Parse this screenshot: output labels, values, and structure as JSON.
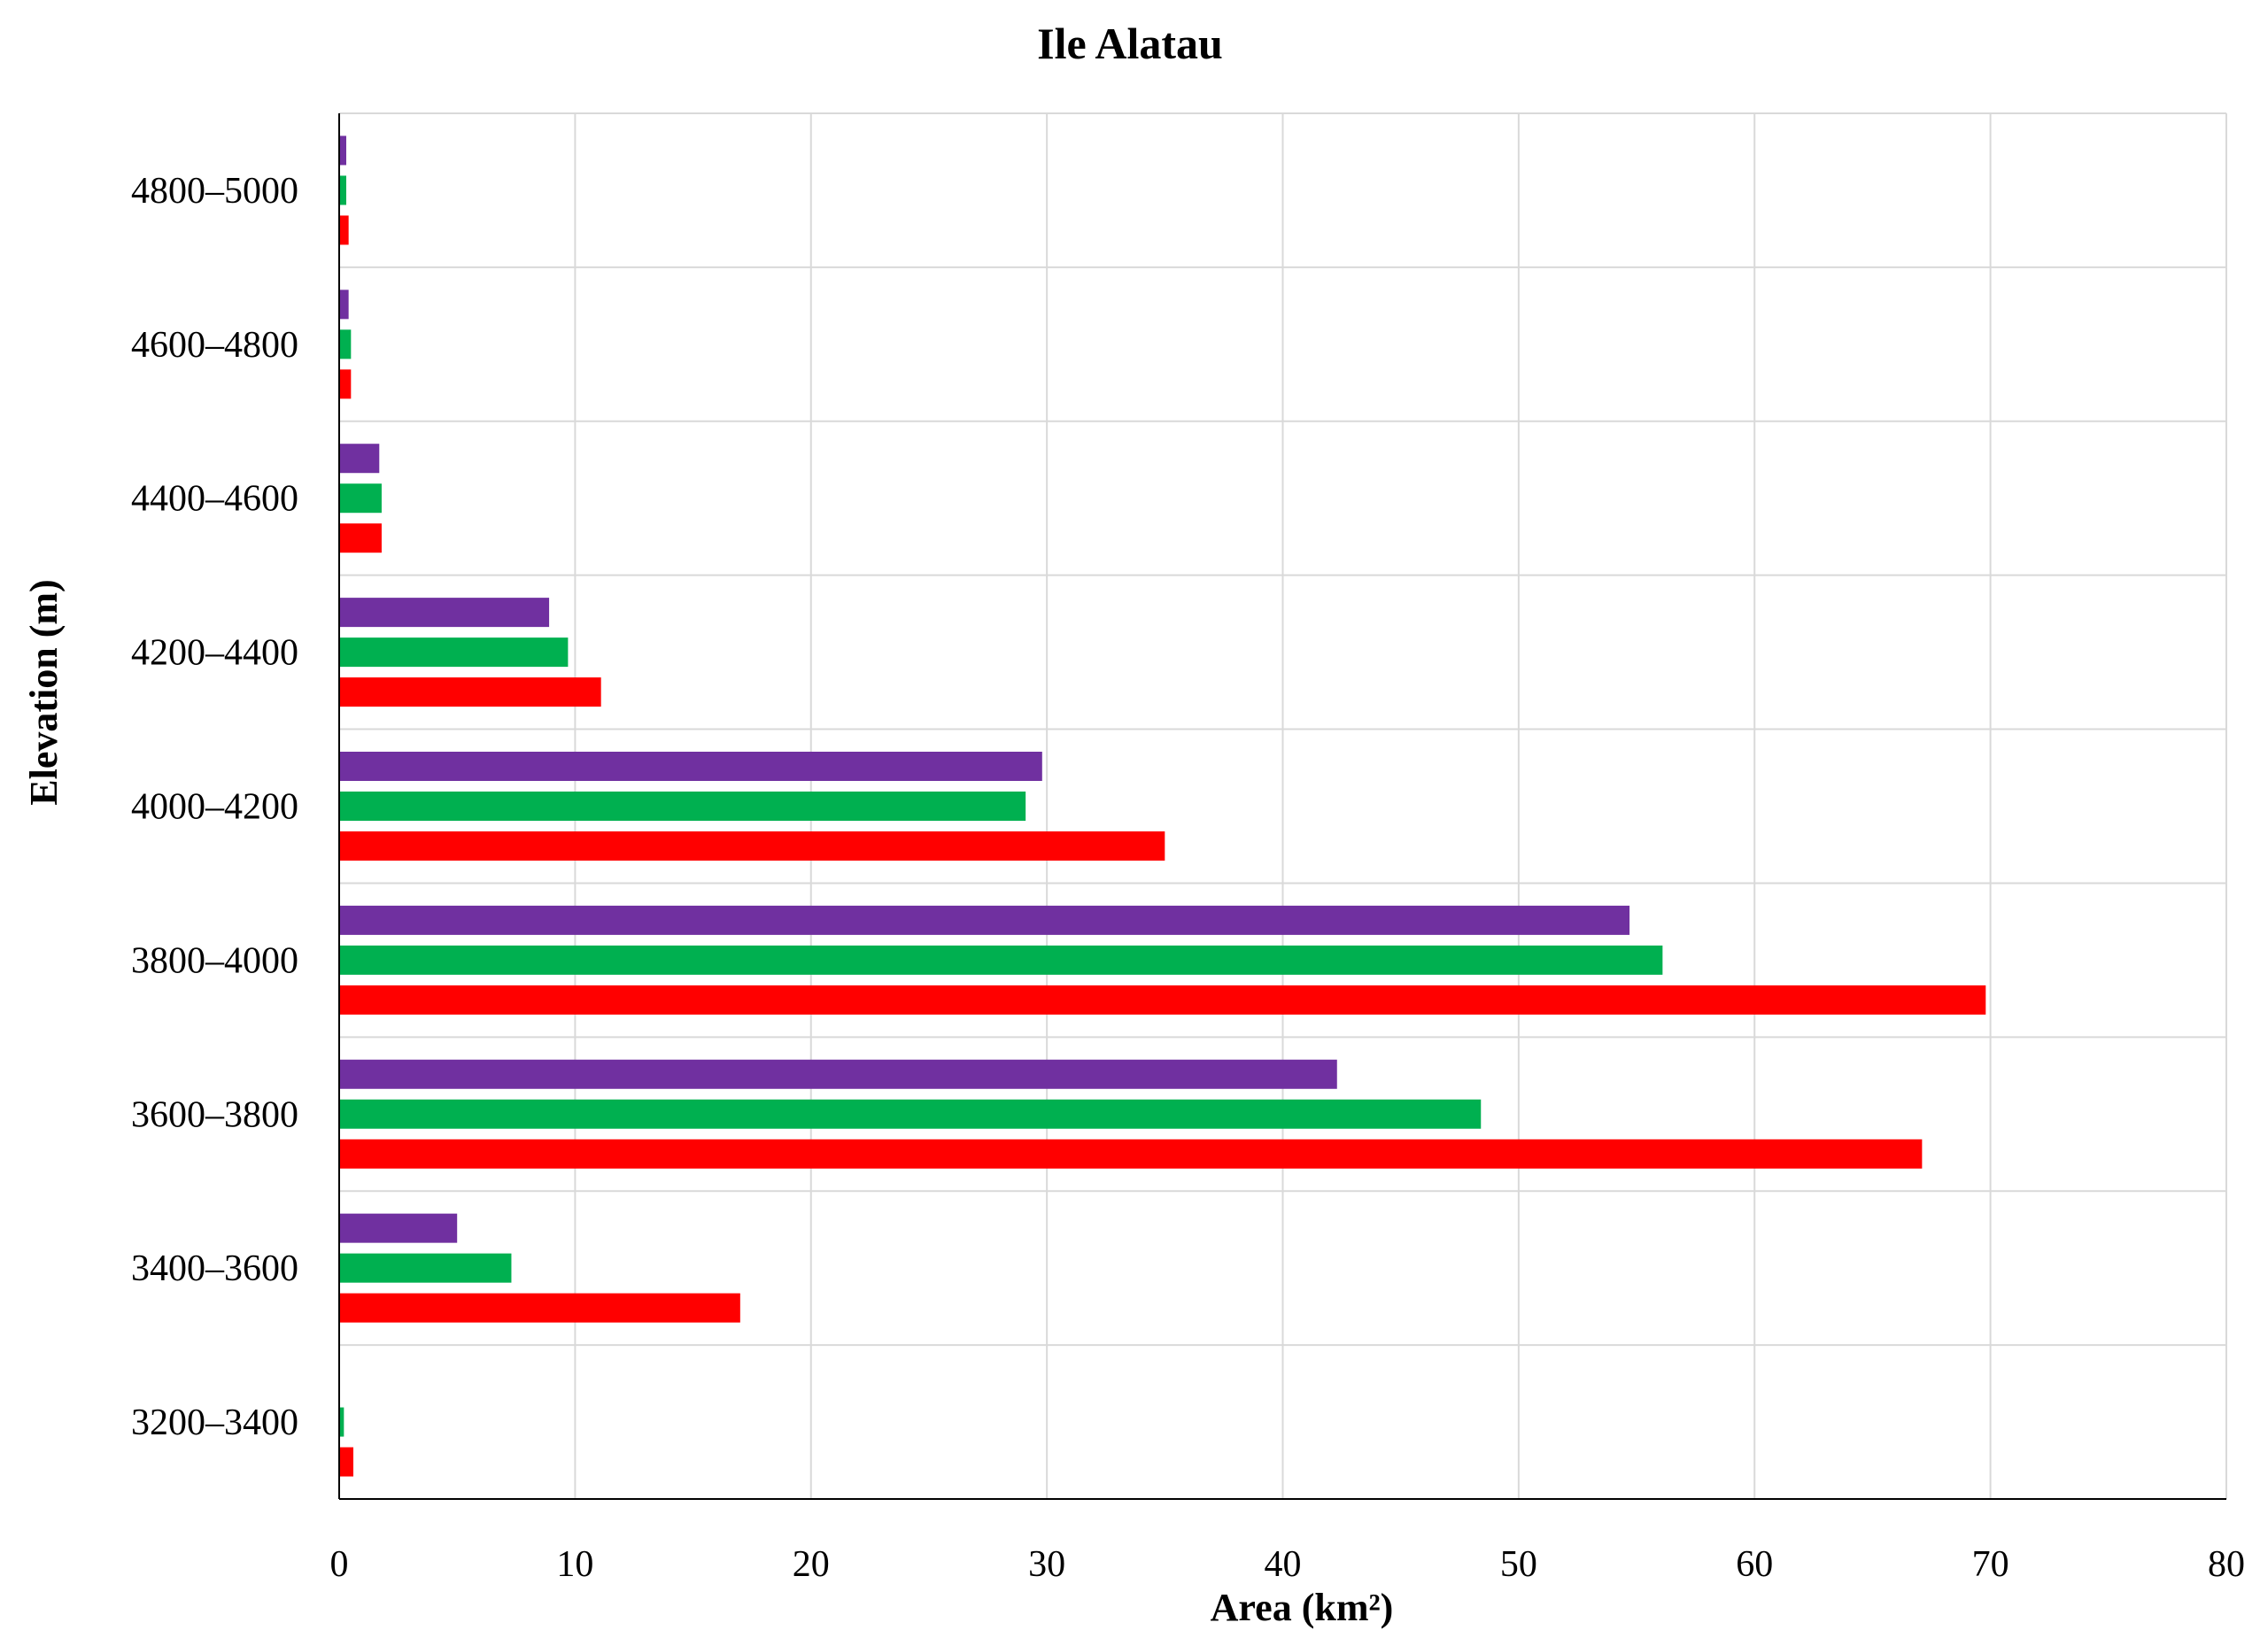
{
  "chart_data": {
    "type": "bar",
    "orientation": "horizontal",
    "title": "Ile Alatau",
    "xlabel": "Area (km²)",
    "ylabel": "Elevation (m)",
    "xlim": [
      0,
      80
    ],
    "x_ticks": [
      "0",
      "10",
      "20",
      "30",
      "40",
      "50",
      "60",
      "70",
      "80"
    ],
    "grid": true,
    "legend": "none",
    "categories": [
      "3200–3400",
      "3400–3600",
      "3600–3800",
      "3800–4000",
      "4000–4200",
      "4200–4400",
      "4400–4600",
      "4600–4800",
      "4800–5000"
    ],
    "series": [
      {
        "color": "#7030a0",
        "values": [
          0.0,
          5.0,
          42.3,
          54.7,
          29.8,
          8.9,
          1.7,
          0.4,
          0.3
        ]
      },
      {
        "color": "#00b050",
        "values": [
          0.2,
          7.3,
          48.4,
          56.1,
          29.1,
          9.7,
          1.8,
          0.5,
          0.3
        ]
      },
      {
        "color": "#ff0000",
        "values": [
          0.6,
          17.0,
          67.1,
          69.8,
          35.0,
          11.1,
          1.8,
          0.5,
          0.4
        ]
      }
    ]
  }
}
